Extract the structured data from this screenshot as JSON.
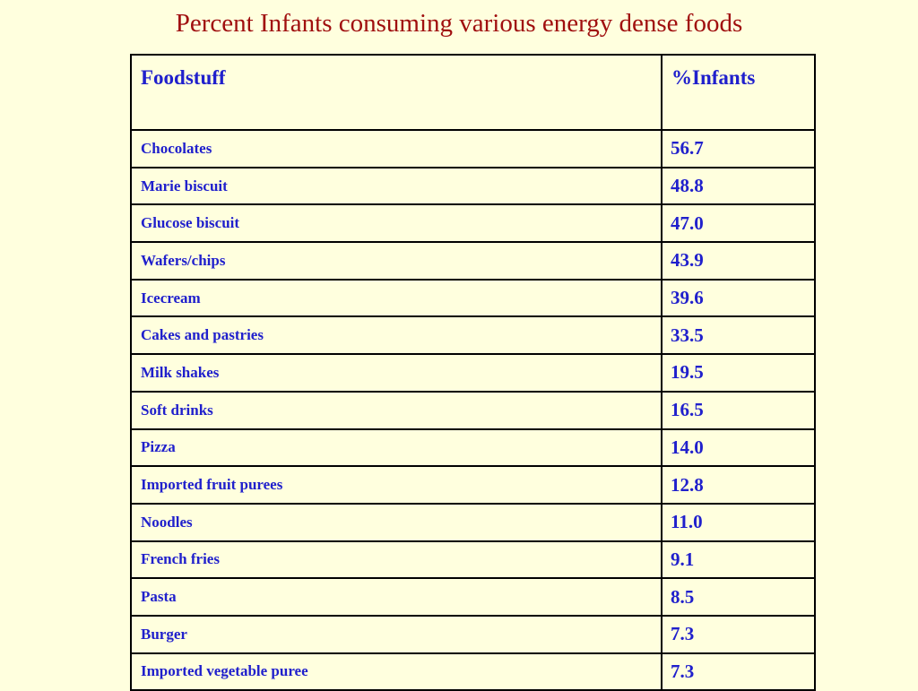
{
  "slide": {
    "title": "Percent Infants consuming various energy dense foods",
    "background_color": "#FFFFDE",
    "title_color": "#A00F0F",
    "text_color": "#2020CC",
    "grid_color": "#000000"
  },
  "table": {
    "columns": [
      {
        "label": "Foodstuff"
      },
      {
        "label": "%Infants"
      }
    ],
    "rows": [
      {
        "food": "Chocolates",
        "value": "56.7"
      },
      {
        "food": "Marie biscuit",
        "value": "48.8"
      },
      {
        "food": "Glucose biscuit",
        "value": "47.0"
      },
      {
        "food": "Wafers/chips",
        "value": "43.9"
      },
      {
        "food": "Icecream",
        "value": "39.6"
      },
      {
        "food": "Cakes and pastries",
        "value": "33.5"
      },
      {
        "food": "Milk shakes",
        "value": "19.5"
      },
      {
        "food": "Soft drinks",
        "value": "16.5"
      },
      {
        "food": "Pizza",
        "value": "14.0"
      },
      {
        "food": "Imported fruit purees",
        "value": "12.8"
      },
      {
        "food": "Noodles",
        "value": "11.0"
      },
      {
        "food": "French fries",
        "value": "9.1"
      },
      {
        "food": "Pasta",
        "value": "8.5"
      },
      {
        "food": "Burger",
        "value": "7.3"
      },
      {
        "food": "Imported vegetable puree",
        "value": "7.3"
      }
    ]
  },
  "chart_data": {
    "type": "table",
    "title": "Percent Infants consuming various energy dense foods",
    "columns": [
      "Foodstuff",
      "%Infants"
    ],
    "categories": [
      "Chocolates",
      "Marie biscuit",
      "Glucose biscuit",
      "Wafers/chips",
      "Icecream",
      "Cakes and pastries",
      "Milk shakes",
      "Soft drinks",
      "Pizza",
      "Imported fruit purees",
      "Noodles",
      "French fries",
      "Pasta",
      "Burger",
      "Imported vegetable puree"
    ],
    "values": [
      56.7,
      48.8,
      47.0,
      43.9,
      39.6,
      33.5,
      19.5,
      16.5,
      14.0,
      12.8,
      11.0,
      9.1,
      8.5,
      7.3,
      7.3
    ]
  }
}
